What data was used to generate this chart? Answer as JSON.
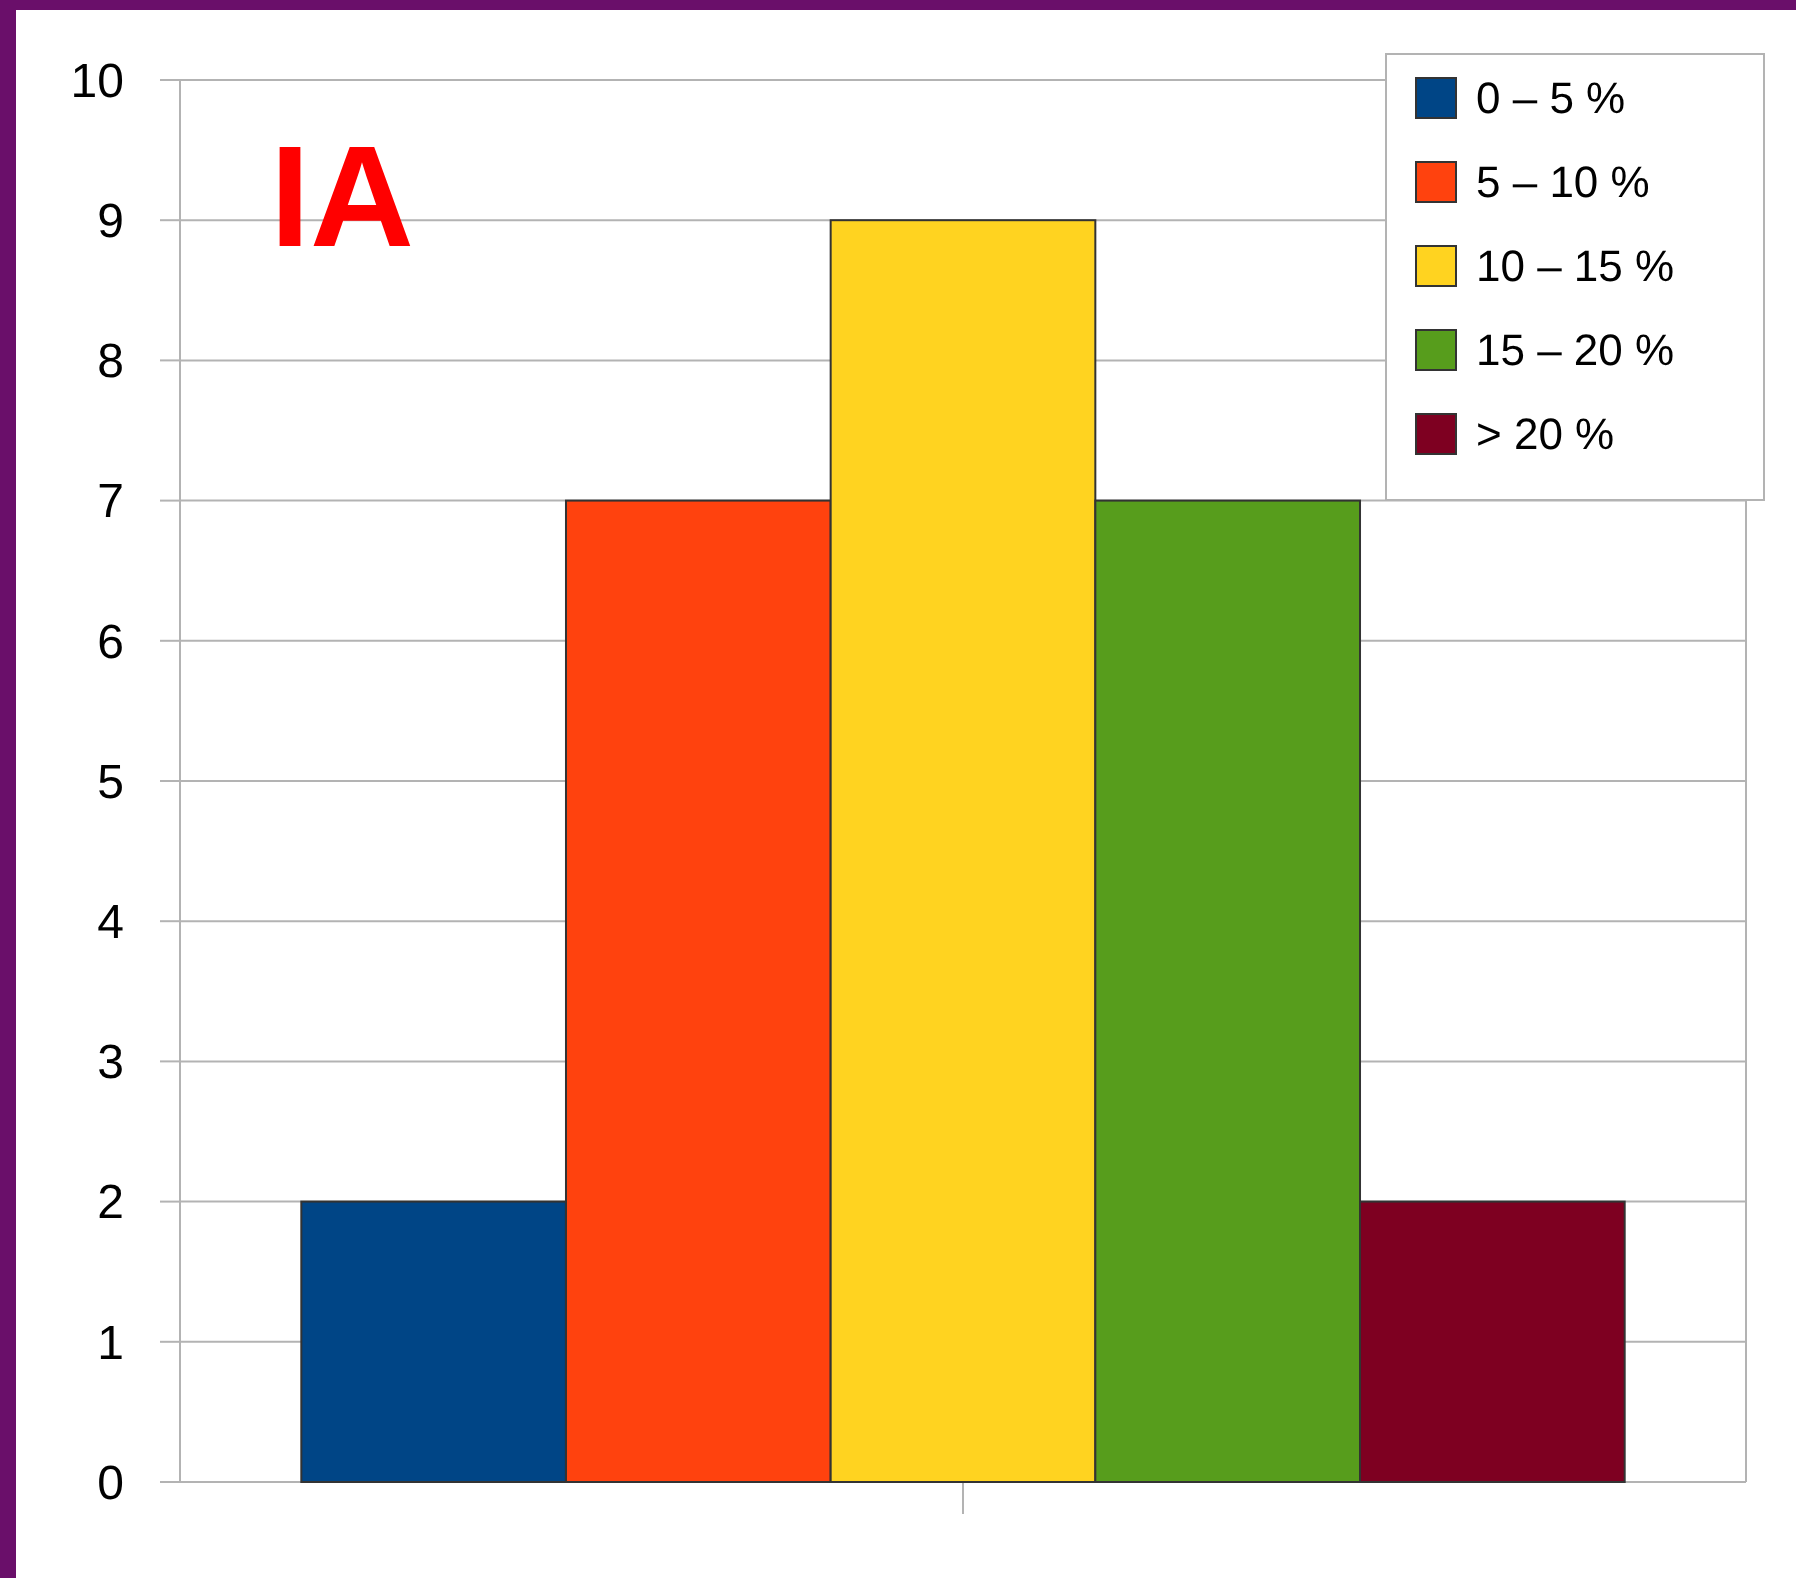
{
  "chart_data": {
    "type": "bar",
    "title": "IA",
    "categories": [
      null
    ],
    "series": [
      {
        "name": "0 – 5 %",
        "color": "#004586",
        "values": [
          2
        ]
      },
      {
        "name": "5 – 10 %",
        "color": "#ff420e",
        "values": [
          7
        ]
      },
      {
        "name": "10 – 15 %",
        "color": "#ffd320",
        "values": [
          9
        ]
      },
      {
        "name": "15 – 20 %",
        "color": "#579d1c",
        "values": [
          7
        ]
      },
      {
        "name": "> 20 %",
        "color": "#7e0021",
        "values": [
          2
        ]
      }
    ],
    "ylim": [
      0,
      10
    ],
    "yticks": [
      0,
      1,
      2,
      3,
      4,
      5,
      6,
      7,
      8,
      9,
      10
    ],
    "grid": "y",
    "legend": "top right"
  }
}
